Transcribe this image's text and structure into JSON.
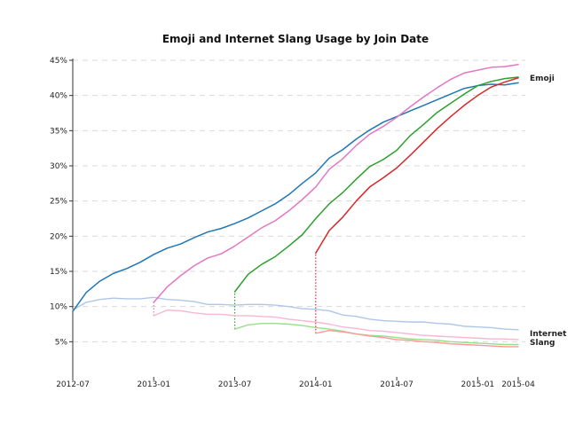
{
  "chart_data": {
    "type": "line",
    "title": "Emoji and Internet Slang Usage by Join Date",
    "xlabel": "",
    "ylabel": "",
    "x_domain": [
      "2012-07",
      "2015-04"
    ],
    "ylim": [
      0,
      45
    ],
    "y_ticks": [
      5,
      10,
      15,
      20,
      25,
      30,
      35,
      40,
      45
    ],
    "y_tick_labels": [
      "5%",
      "10%",
      "15%",
      "20%",
      "25%",
      "30%",
      "35%",
      "40%",
      "45%"
    ],
    "x_ticks": [
      "2012-07",
      "2013-01",
      "2013-07",
      "2014-01",
      "2014-07",
      "2015-01",
      "2015-04"
    ],
    "x_tick_labels": [
      "2012-07",
      "2013-01",
      "2013-07",
      "2014-01",
      "2014-07",
      "2015-01",
      "2015-04"
    ],
    "grid": "horizontal dashed",
    "annotations": [
      {
        "text": "Emoji",
        "x": "2015-04",
        "y": 42.5
      },
      {
        "text": "Internet Slang",
        "x": "2015-04",
        "y": 5.7
      }
    ],
    "series": [
      {
        "color": "#1f77b4",
        "group": "emoji",
        "x": [
          "2012-07",
          "2012-08",
          "2012-09",
          "2012-10",
          "2012-11",
          "2012-12",
          "2013-01",
          "2013-02",
          "2013-03",
          "2013-04",
          "2013-05",
          "2013-06",
          "2013-07",
          "2013-08",
          "2013-09",
          "2013-10",
          "2013-11",
          "2013-12",
          "2014-01",
          "2014-02",
          "2014-03",
          "2014-04",
          "2014-05",
          "2014-06",
          "2014-07",
          "2014-08",
          "2014-09",
          "2014-10",
          "2014-11",
          "2014-12",
          "2015-01",
          "2015-02",
          "2015-03",
          "2015-04"
        ],
        "values": [
          9.3,
          12.0,
          13.6,
          14.7,
          15.4,
          16.3,
          17.4,
          18.3,
          18.9,
          19.8,
          20.6,
          21.1,
          21.8,
          22.6,
          23.6,
          24.6,
          25.9,
          27.5,
          29.0,
          31.1,
          32.3,
          33.8,
          35.1,
          36.2,
          37.0,
          37.8,
          38.6,
          39.4,
          40.2,
          41.0,
          41.4,
          41.6,
          41.5,
          41.8
        ]
      },
      {
        "color": "#e377c2",
        "group": "emoji",
        "x": [
          "2013-01",
          "2013-02",
          "2013-03",
          "2013-04",
          "2013-05",
          "2013-06",
          "2013-07",
          "2013-08",
          "2013-09",
          "2013-10",
          "2013-11",
          "2013-12",
          "2014-01",
          "2014-02",
          "2014-03",
          "2014-04",
          "2014-05",
          "2014-06",
          "2014-07",
          "2014-08",
          "2014-09",
          "2014-10",
          "2014-11",
          "2014-12",
          "2015-01",
          "2015-02",
          "2015-03",
          "2015-04"
        ],
        "values": [
          10.6,
          12.8,
          14.4,
          15.8,
          16.9,
          17.5,
          18.6,
          19.9,
          21.2,
          22.2,
          23.6,
          25.2,
          27.0,
          29.5,
          31.0,
          32.9,
          34.5,
          35.6,
          36.9,
          38.4,
          39.8,
          41.1,
          42.3,
          43.2,
          43.6,
          44.0,
          44.1,
          44.4
        ]
      },
      {
        "color": "#2ca02c",
        "group": "emoji",
        "x": [
          "2013-07",
          "2013-08",
          "2013-09",
          "2013-10",
          "2013-11",
          "2013-12",
          "2014-01",
          "2014-02",
          "2014-03",
          "2014-04",
          "2014-05",
          "2014-06",
          "2014-07",
          "2014-08",
          "2014-09",
          "2014-10",
          "2014-11",
          "2014-12",
          "2015-01",
          "2015-02",
          "2015-03",
          "2015-04"
        ],
        "values": [
          12.1,
          14.6,
          16.0,
          17.1,
          18.6,
          20.2,
          22.5,
          24.6,
          26.2,
          28.1,
          29.9,
          30.9,
          32.2,
          34.3,
          35.9,
          37.6,
          38.9,
          40.2,
          41.4,
          42.0,
          42.4,
          42.6
        ]
      },
      {
        "color": "#d62728",
        "group": "emoji",
        "x": [
          "2014-01",
          "2014-02",
          "2014-03",
          "2014-04",
          "2014-05",
          "2014-06",
          "2014-07",
          "2014-08",
          "2014-09",
          "2014-10",
          "2014-11",
          "2014-12",
          "2015-01",
          "2015-02",
          "2015-03",
          "2015-04"
        ],
        "values": [
          17.6,
          20.8,
          22.7,
          25.0,
          27.0,
          28.3,
          29.7,
          31.5,
          33.4,
          35.3,
          37.0,
          38.6,
          40.0,
          41.2,
          41.9,
          42.5
        ]
      },
      {
        "color": "#aec7e8",
        "group": "slang",
        "x": [
          "2012-07",
          "2012-08",
          "2012-09",
          "2012-10",
          "2012-11",
          "2012-12",
          "2013-01",
          "2013-02",
          "2013-03",
          "2013-04",
          "2013-05",
          "2013-06",
          "2013-07",
          "2013-08",
          "2013-09",
          "2013-10",
          "2013-11",
          "2013-12",
          "2014-01",
          "2014-02",
          "2014-03",
          "2014-04",
          "2014-05",
          "2014-06",
          "2014-07",
          "2014-08",
          "2014-09",
          "2014-10",
          "2014-11",
          "2014-12",
          "2015-01",
          "2015-02",
          "2015-03",
          "2015-04"
        ],
        "values": [
          9.5,
          10.6,
          11.0,
          11.2,
          11.1,
          11.1,
          11.3,
          11.0,
          10.9,
          10.7,
          10.3,
          10.3,
          10.2,
          10.3,
          10.3,
          10.2,
          10.0,
          9.7,
          9.6,
          9.4,
          8.8,
          8.6,
          8.2,
          8.0,
          7.9,
          7.8,
          7.8,
          7.6,
          7.5,
          7.2,
          7.1,
          7.0,
          6.8,
          6.7
        ]
      },
      {
        "color": "#f7b6d2",
        "group": "slang",
        "x": [
          "2013-01",
          "2013-02",
          "2013-03",
          "2013-04",
          "2013-05",
          "2013-06",
          "2013-07",
          "2013-08",
          "2013-09",
          "2013-10",
          "2013-11",
          "2013-12",
          "2014-01",
          "2014-02",
          "2014-03",
          "2014-04",
          "2014-05",
          "2014-06",
          "2014-07",
          "2014-08",
          "2014-09",
          "2014-10",
          "2014-11",
          "2014-12",
          "2015-01",
          "2015-02",
          "2015-03",
          "2015-04"
        ],
        "values": [
          8.7,
          9.5,
          9.4,
          9.1,
          8.9,
          8.9,
          8.7,
          8.7,
          8.6,
          8.5,
          8.2,
          8.0,
          7.8,
          7.5,
          7.1,
          6.9,
          6.6,
          6.5,
          6.3,
          6.1,
          5.9,
          5.8,
          5.7,
          5.6,
          5.5,
          5.4,
          5.4,
          5.3
        ]
      },
      {
        "color": "#98df8a",
        "group": "slang",
        "x": [
          "2013-07",
          "2013-08",
          "2013-09",
          "2013-10",
          "2013-11",
          "2013-12",
          "2014-01",
          "2014-02",
          "2014-03",
          "2014-04",
          "2014-05",
          "2014-06",
          "2014-07",
          "2014-08",
          "2014-09",
          "2014-10",
          "2014-11",
          "2014-12",
          "2015-01",
          "2015-02",
          "2015-03",
          "2015-04"
        ],
        "values": [
          6.8,
          7.4,
          7.6,
          7.6,
          7.5,
          7.3,
          7.0,
          6.8,
          6.5,
          6.1,
          5.9,
          5.8,
          5.6,
          5.4,
          5.3,
          5.2,
          5.0,
          4.9,
          4.8,
          4.7,
          4.6,
          4.6
        ]
      },
      {
        "color": "#ff9896",
        "group": "slang",
        "x": [
          "2014-01",
          "2014-02",
          "2014-03",
          "2014-04",
          "2014-05",
          "2014-06",
          "2014-07",
          "2014-08",
          "2014-09",
          "2014-10",
          "2014-11",
          "2014-12",
          "2015-01",
          "2015-02",
          "2015-03",
          "2015-04"
        ],
        "values": [
          6.2,
          6.6,
          6.4,
          6.1,
          5.8,
          5.6,
          5.3,
          5.2,
          5.0,
          4.9,
          4.7,
          4.6,
          4.5,
          4.4,
          4.3,
          4.3
        ]
      }
    ],
    "connectors": [
      {
        "x": "2013-01",
        "from_y": 8.7,
        "to_y": 10.6,
        "color": "#e377c2"
      },
      {
        "x": "2013-07",
        "from_y": 6.8,
        "to_y": 12.1,
        "color": "#2ca02c"
      },
      {
        "x": "2014-01",
        "from_y": 6.2,
        "to_y": 17.6,
        "color": "#d62728"
      }
    ]
  }
}
